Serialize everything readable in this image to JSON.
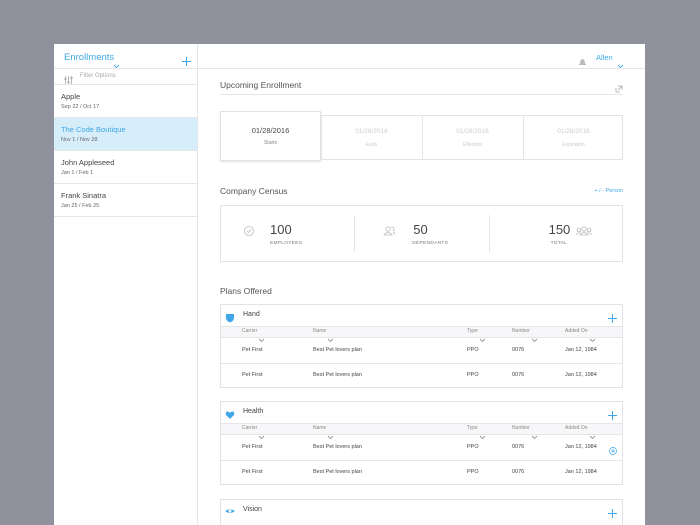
{
  "sidebar": {
    "title": "Enrollments",
    "filter": "Filter Options",
    "items": [
      {
        "name": "Apple",
        "dates": "Sep 22 / Oct 17"
      },
      {
        "name": "The Code Boutique",
        "dates": "Nov 1 / Nov 28",
        "selected": true
      },
      {
        "name": "John Appleseed",
        "dates": "Jan 1 / Feb 1"
      },
      {
        "name": "Frank Sinatra",
        "dates": "Jan 25 / Feb 25"
      }
    ]
  },
  "header": {
    "user": "Allen"
  },
  "enrollment": {
    "title": "Upcoming Enrollment",
    "cards": [
      {
        "date": "01/28/2016",
        "label": "Starts"
      },
      {
        "date": "01/28/2016",
        "label": "Ends"
      },
      {
        "date": "01/28/2016",
        "label": "Effective"
      },
      {
        "date": "01/28/2016",
        "label": "Expiration"
      }
    ]
  },
  "census": {
    "title": "Company Census",
    "action": "+ / - Person",
    "stats": [
      {
        "value": "100",
        "label": "EMPLOYEES"
      },
      {
        "value": "50",
        "label": "DEPENDANTS"
      },
      {
        "value": "150",
        "label": "TOTAL"
      }
    ]
  },
  "plans": {
    "title": "Plans Offered",
    "columns": [
      "Carrier",
      "Name",
      "Type",
      "Number",
      "Added On"
    ],
    "groups": [
      {
        "name": "Hand",
        "rows": [
          [
            "Pet First",
            "Best Pet lovers plan",
            "PPO",
            "0076",
            "Jan 12, 1984"
          ],
          [
            "Pet First",
            "Best Pet lovers plan",
            "PPO",
            "0076",
            "Jan 12, 1984"
          ]
        ]
      },
      {
        "name": "Health",
        "rows": [
          [
            "Pet First",
            "Best Pet lovers plan",
            "PPO",
            "0076",
            "Jan 12, 1984"
          ],
          [
            "Pet First",
            "Best Pet lovers plan",
            "PPO",
            "0076",
            "Jan 12, 1984"
          ]
        ]
      },
      {
        "name": "Vision",
        "rows": []
      }
    ]
  }
}
